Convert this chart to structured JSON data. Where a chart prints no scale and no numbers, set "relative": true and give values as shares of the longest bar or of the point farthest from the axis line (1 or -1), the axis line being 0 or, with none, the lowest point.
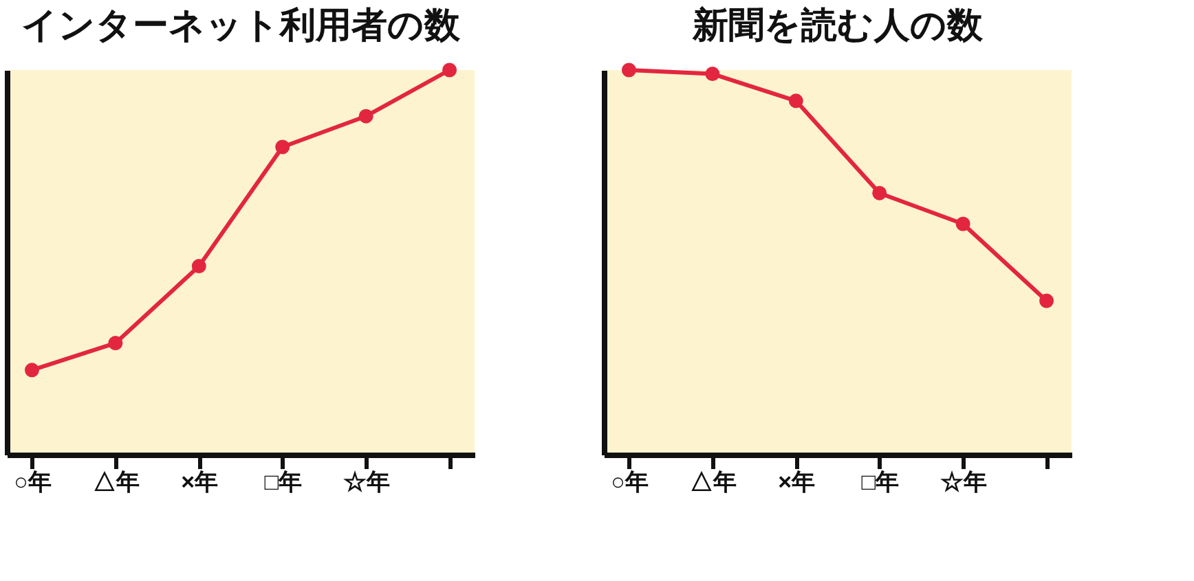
{
  "chart_data": [
    {
      "type": "line",
      "title": "インターネット利用者の数",
      "categories": [
        "○年",
        "△年",
        "×年",
        "□年",
        "☆年",
        null
      ],
      "relative": true,
      "marker": "circle",
      "line_style": "solid",
      "series": [
        {
          "color": "#e3263f",
          "values": [
            0.22,
            0.29,
            0.49,
            0.8,
            0.88,
            1
          ]
        }
      ]
    },
    {
      "type": "line",
      "title": "新聞を読む人の数",
      "categories": [
        "○年",
        "△年",
        "×年",
        "□年",
        "☆年",
        null
      ],
      "relative": true,
      "marker": "circle",
      "line_style": "solid",
      "series": [
        {
          "color": "#e3263f",
          "values": [
            1,
            0.99,
            0.92,
            0.68,
            0.6,
            0.4
          ]
        }
      ]
    }
  ]
}
